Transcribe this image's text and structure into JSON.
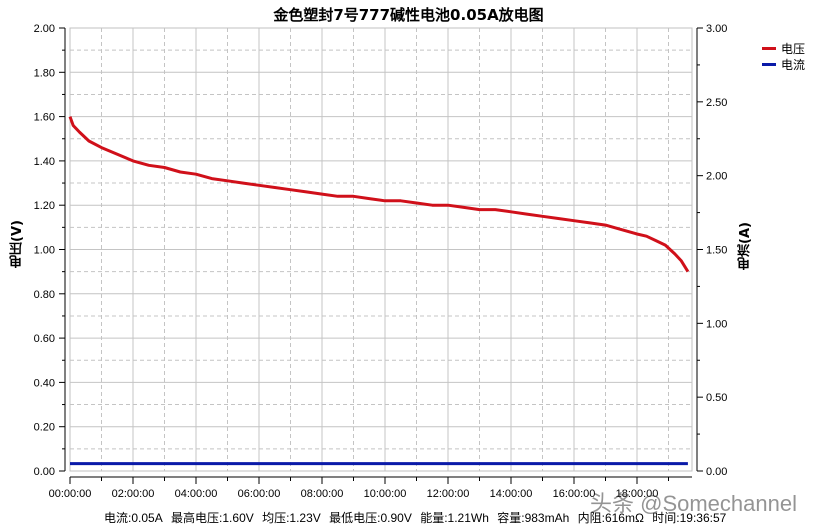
{
  "chart_data": {
    "type": "line",
    "title": "金色塑封7号777碱性电池0.05A放电图",
    "xlabel": "",
    "ylabel": "电压(V)",
    "y2label": "电流(A)",
    "xlim": [
      "00:00:00",
      "19:36:57"
    ],
    "ylim": [
      0,
      2.0
    ],
    "y2lim": [
      0,
      3.0
    ],
    "x_ticks": [
      "00:00:00",
      "02:00:00",
      "04:00:00",
      "06:00:00",
      "08:00:00",
      "10:00:00",
      "12:00:00",
      "14:00:00",
      "16:00:00",
      "18:00:00"
    ],
    "y_ticks": [
      "0.00",
      "0.20",
      "0.40",
      "0.60",
      "0.80",
      "1.00",
      "1.20",
      "1.40",
      "1.60",
      "1.80",
      "2.00"
    ],
    "y2_ticks": [
      "0.00",
      "0.50",
      "1.00",
      "1.50",
      "2.00",
      "2.50",
      "3.00"
    ],
    "grid": true,
    "legend_position": "right-top",
    "series": [
      {
        "name": "电压",
        "axis": "left",
        "color": "#d0101a",
        "x_hours": [
          0,
          0.1,
          0.3,
          0.6,
          1.0,
          1.5,
          2.0,
          2.5,
          3.0,
          3.5,
          4.0,
          4.5,
          5.0,
          5.5,
          6.0,
          6.5,
          7.0,
          7.5,
          8.0,
          8.5,
          9.0,
          9.5,
          10.0,
          10.5,
          11.0,
          11.5,
          12.0,
          12.5,
          13.0,
          13.5,
          14.0,
          14.5,
          15.0,
          15.5,
          16.0,
          16.5,
          17.0,
          17.5,
          18.0,
          18.3,
          18.6,
          18.9,
          19.2,
          19.4,
          19.616
        ],
        "values": [
          1.6,
          1.56,
          1.53,
          1.49,
          1.46,
          1.43,
          1.4,
          1.38,
          1.37,
          1.35,
          1.34,
          1.32,
          1.31,
          1.3,
          1.29,
          1.28,
          1.27,
          1.26,
          1.25,
          1.24,
          1.24,
          1.23,
          1.22,
          1.22,
          1.21,
          1.2,
          1.2,
          1.19,
          1.18,
          1.18,
          1.17,
          1.16,
          1.15,
          1.14,
          1.13,
          1.12,
          1.11,
          1.09,
          1.07,
          1.06,
          1.04,
          1.02,
          0.98,
          0.95,
          0.9
        ]
      },
      {
        "name": "电流",
        "axis": "right",
        "color": "#0a1aa8",
        "x_hours": [
          0,
          19.616
        ],
        "values": [
          0.05,
          0.05
        ]
      }
    ]
  },
  "header": {
    "title": "金色塑封7号777碱性电池0.05A放电图"
  },
  "axes": {
    "left_label": "电压(V)",
    "right_label": "电流(A)"
  },
  "legend": {
    "items": [
      {
        "label": "电压",
        "color": "#d0101a"
      },
      {
        "label": "电流",
        "color": "#0a1aa8"
      }
    ]
  },
  "footer": {
    "current": "电流:0.05A",
    "max_voltage": "最高电压:1.60V",
    "avg_voltage": "均压:1.23V",
    "min_voltage": "最低电压:0.90V",
    "energy": "能量:1.21Wh",
    "capacity": "容量:983mAh",
    "resistance": "内阻:616mΩ",
    "time": "时间:19:36:57"
  },
  "watermark": "头条 @Somechannel"
}
